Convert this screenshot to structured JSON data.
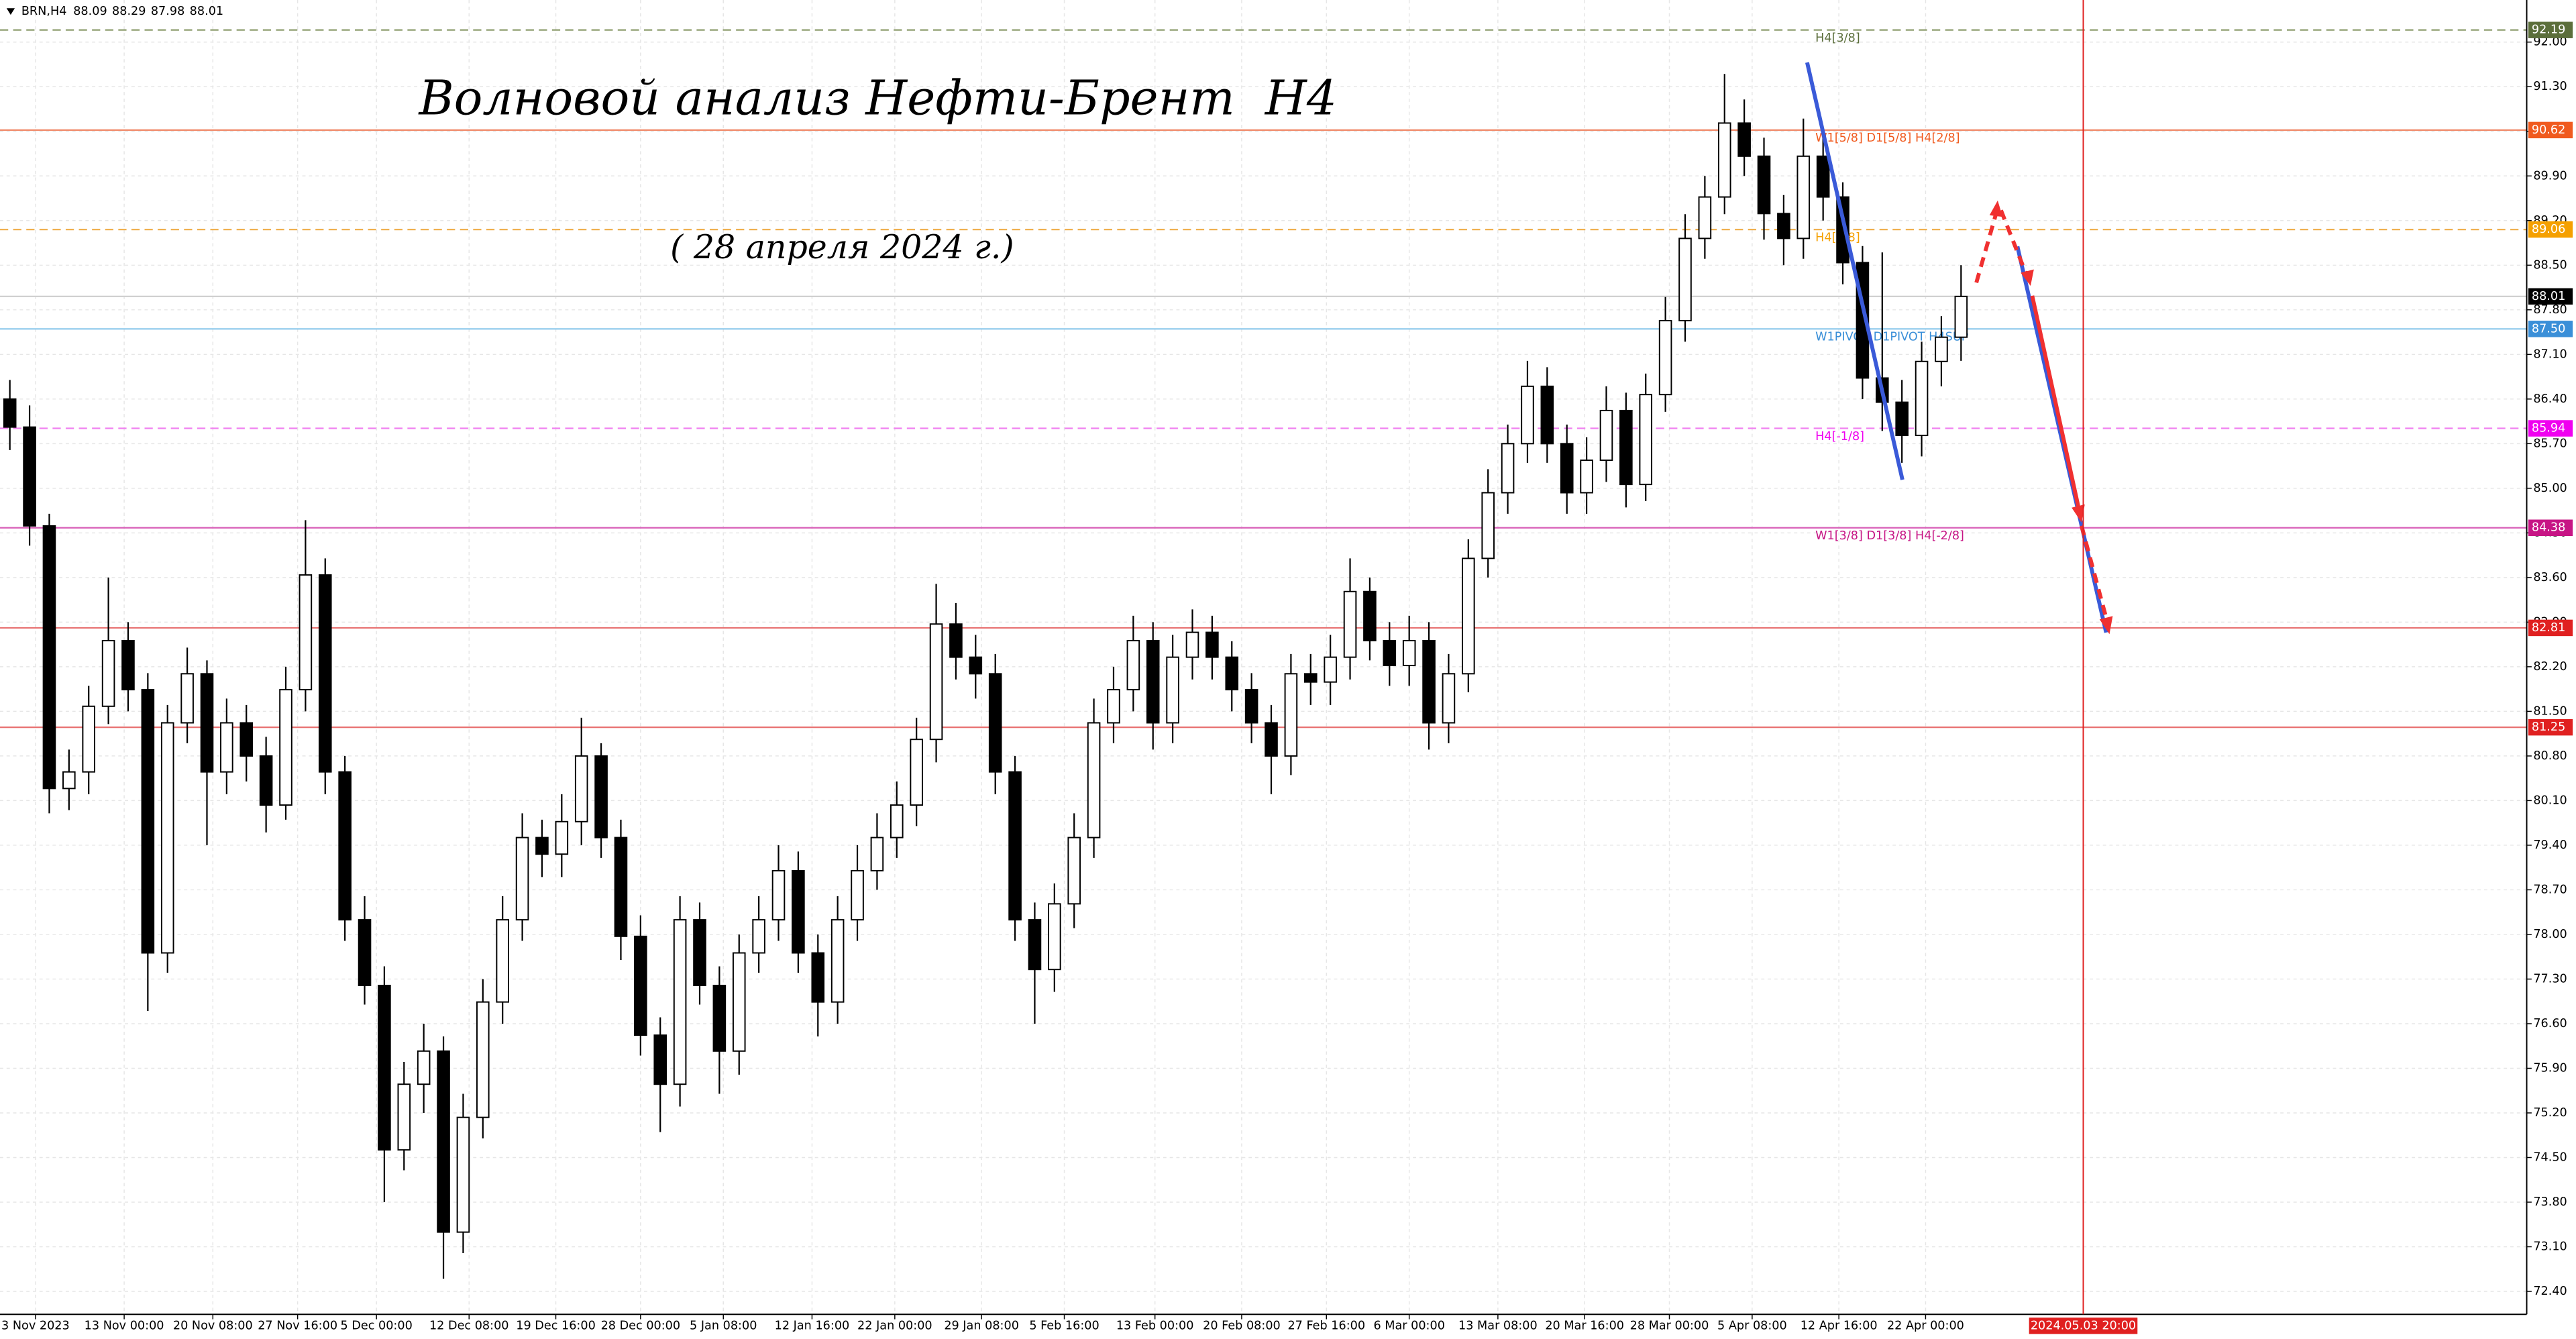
{
  "chart_data": {
    "type": "candlestick",
    "header": {
      "symbol": "BRN,H4",
      "open": 88.09,
      "high": 88.29,
      "low": 87.98,
      "close": 88.01
    },
    "title": "Волновой анализ Нефти-Брент  H4",
    "subtitle": "( 28 апреля 2024 г.)",
    "grid": true,
    "up_color": "#ffffff",
    "down_color": "#000000",
    "ylim": [
      72.04,
      92.66
    ],
    "yticks": [
      {
        "value": 72.4,
        "label": "72.40"
      },
      {
        "value": 73.1,
        "label": "73.10"
      },
      {
        "value": 73.8,
        "label": "73.80"
      },
      {
        "value": 74.5,
        "label": "74.50"
      },
      {
        "value": 75.2,
        "label": "75.20"
      },
      {
        "value": 75.9,
        "label": "75.90"
      },
      {
        "value": 76.6,
        "label": "76.60"
      },
      {
        "value": 77.3,
        "label": "77.30"
      },
      {
        "value": 78.0,
        "label": "78.00"
      },
      {
        "value": 78.7,
        "label": "78.70"
      },
      {
        "value": 79.4,
        "label": "79.40"
      },
      {
        "value": 80.1,
        "label": "80.10"
      },
      {
        "value": 80.8,
        "label": "80.80"
      },
      {
        "value": 81.5,
        "label": "81.50"
      },
      {
        "value": 82.2,
        "label": "82.20"
      },
      {
        "value": 82.9,
        "label": "82.90"
      },
      {
        "value": 83.6,
        "label": "83.60"
      },
      {
        "value": 84.3,
        "label": "84.30"
      },
      {
        "value": 85.0,
        "label": "85.00"
      },
      {
        "value": 85.7,
        "label": "85.70"
      },
      {
        "value": 86.4,
        "label": "86.40"
      },
      {
        "value": 87.1,
        "label": "87.10"
      },
      {
        "value": 87.8,
        "label": "87.80"
      },
      {
        "value": 88.5,
        "label": "88.50"
      },
      {
        "value": 89.2,
        "label": "89.20"
      },
      {
        "value": 89.9,
        "label": "89.90"
      },
      {
        "value": 90.6,
        "label": "90.60"
      },
      {
        "value": 91.3,
        "label": "91.30"
      },
      {
        "value": 92.0,
        "label": "92.00"
      }
    ],
    "xlim": [
      0,
      128.2
    ],
    "xticks": [
      {
        "value": 1.8,
        "label": "3 Nov 2023"
      },
      {
        "value": 6.3,
        "label": "13 Nov 00:00"
      },
      {
        "value": 10.8,
        "label": "20 Nov 08:00"
      },
      {
        "value": 15.1,
        "label": "27 Nov 16:00"
      },
      {
        "value": 19.1,
        "label": "5 Dec 00:00"
      },
      {
        "value": 23.8,
        "label": "12 Dec 08:00"
      },
      {
        "value": 28.2,
        "label": "19 Dec 16:00"
      },
      {
        "value": 32.5,
        "label": "28 Dec 00:00"
      },
      {
        "value": 36.7,
        "label": "5 Jan 08:00"
      },
      {
        "value": 41.2,
        "label": "12 Jan 16:00"
      },
      {
        "value": 45.4,
        "label": "22 Jan 00:00"
      },
      {
        "value": 49.8,
        "label": "29 Jan 08:00"
      },
      {
        "value": 54.0,
        "label": "5 Feb 16:00"
      },
      {
        "value": 58.6,
        "label": "13 Feb 00:00"
      },
      {
        "value": 63.0,
        "label": "20 Feb 08:00"
      },
      {
        "value": 67.3,
        "label": "27 Feb 16:00"
      },
      {
        "value": 71.5,
        "label": "6 Mar 00:00"
      },
      {
        "value": 76.0,
        "label": "13 Mar 08:00"
      },
      {
        "value": 80.4,
        "label": "20 Mar 16:00"
      },
      {
        "value": 84.7,
        "label": "28 Mar 00:00"
      },
      {
        "value": 88.9,
        "label": "5 Apr 08:00"
      },
      {
        "value": 93.3,
        "label": "12 Apr 16:00"
      },
      {
        "value": 97.7,
        "label": "22 Apr 00:00"
      }
    ],
    "vline": {
      "value": 105.7,
      "label": "2024.05.03 20:00",
      "color": "#e02020"
    },
    "levels": [
      {
        "value": 92.19,
        "text": "H4[3/8]",
        "color": "#8a9a6a",
        "label_color": "#5b6e3b",
        "style": "dashed"
      },
      {
        "value": 90.62,
        "text": "W1[5/8] D1[5/8] H4[2/8]",
        "color": "#f08a6a",
        "label_color": "#f05a1e",
        "style": "solid"
      },
      {
        "value": 89.06,
        "text": "H4[1/8]",
        "color": "#f0b050",
        "label_color": "#f5a000",
        "style": "dashed"
      },
      {
        "value": 88.01,
        "color": "#d0d0d0",
        "label_color": "#000000",
        "style": "solid"
      },
      {
        "value": 87.5,
        "label": "87.50",
        "text": "W1PIVOT D1PIVOT H4SUP",
        "color": "#8cc8ec",
        "label_color": "#3a8fd8",
        "style": "solid"
      },
      {
        "value": 85.94,
        "text": "H4[-1/8]",
        "color": "#f080f0",
        "label_color": "#f000f0",
        "style": "dashed"
      },
      {
        "value": 84.38,
        "text": "W1[3/8] D1[3/8] H4[-2/8]",
        "color": "#d860b8",
        "label_color": "#c71585",
        "style": "solid"
      },
      {
        "value": 82.81,
        "color": "#e87070",
        "label_color": "#e02020",
        "style": "solid"
      },
      {
        "value": 81.25,
        "color": "#e87070",
        "label_color": "#e02020",
        "style": "solid"
      }
    ],
    "ohlc": [
      [
        86.4,
        86.7,
        85.6,
        85.96
      ],
      [
        85.96,
        86.3,
        84.1,
        84.41
      ],
      [
        84.41,
        84.6,
        79.9,
        80.29
      ],
      [
        80.29,
        80.9,
        79.95,
        80.55
      ],
      [
        80.55,
        81.9,
        80.2,
        81.58
      ],
      [
        81.58,
        83.6,
        81.3,
        82.61
      ],
      [
        82.61,
        82.9,
        81.5,
        81.84
      ],
      [
        81.84,
        82.1,
        76.8,
        77.71
      ],
      [
        77.71,
        81.6,
        77.4,
        81.32
      ],
      [
        81.32,
        82.5,
        81.0,
        82.09
      ],
      [
        82.09,
        82.3,
        79.4,
        80.55
      ],
      [
        80.55,
        81.7,
        80.2,
        81.32
      ],
      [
        81.32,
        81.6,
        80.4,
        80.8
      ],
      [
        80.8,
        81.1,
        79.6,
        80.03
      ],
      [
        80.03,
        82.2,
        79.8,
        81.84
      ],
      [
        81.84,
        84.5,
        81.5,
        83.64
      ],
      [
        83.64,
        83.9,
        80.2,
        80.55
      ],
      [
        80.55,
        80.8,
        77.9,
        78.23
      ],
      [
        78.23,
        78.6,
        76.9,
        77.2
      ],
      [
        77.2,
        77.5,
        73.8,
        74.62
      ],
      [
        74.62,
        76.0,
        74.3,
        75.65
      ],
      [
        75.65,
        76.6,
        75.2,
        76.17
      ],
      [
        76.17,
        76.4,
        72.6,
        73.33
      ],
      [
        73.33,
        75.5,
        73.0,
        75.13
      ],
      [
        75.13,
        77.3,
        74.8,
        76.94
      ],
      [
        76.94,
        78.6,
        76.6,
        78.23
      ],
      [
        78.23,
        79.9,
        77.9,
        79.52
      ],
      [
        79.52,
        79.8,
        78.9,
        79.26
      ],
      [
        79.26,
        80.2,
        78.9,
        79.77
      ],
      [
        79.77,
        81.4,
        79.4,
        80.8
      ],
      [
        80.8,
        81.0,
        79.2,
        79.52
      ],
      [
        79.52,
        79.8,
        77.6,
        77.97
      ],
      [
        77.97,
        78.3,
        76.1,
        76.42
      ],
      [
        76.42,
        76.7,
        74.9,
        75.65
      ],
      [
        75.65,
        78.6,
        75.3,
        78.23
      ],
      [
        78.23,
        78.5,
        76.9,
        77.2
      ],
      [
        77.2,
        77.5,
        75.5,
        76.17
      ],
      [
        76.17,
        78.0,
        75.8,
        77.71
      ],
      [
        77.71,
        78.6,
        77.4,
        78.23
      ],
      [
        78.23,
        79.4,
        77.9,
        79.0
      ],
      [
        79.0,
        79.3,
        77.4,
        77.71
      ],
      [
        77.71,
        78.0,
        76.4,
        76.94
      ],
      [
        76.94,
        78.6,
        76.6,
        78.23
      ],
      [
        78.23,
        79.4,
        77.9,
        79.0
      ],
      [
        79.0,
        79.9,
        78.7,
        79.52
      ],
      [
        79.52,
        80.4,
        79.2,
        80.03
      ],
      [
        80.03,
        81.4,
        79.7,
        81.06
      ],
      [
        81.06,
        83.5,
        80.7,
        82.87
      ],
      [
        82.87,
        83.2,
        82.0,
        82.35
      ],
      [
        82.35,
        82.7,
        81.7,
        82.09
      ],
      [
        82.09,
        82.4,
        80.2,
        80.55
      ],
      [
        80.55,
        80.8,
        77.9,
        78.23
      ],
      [
        78.23,
        78.5,
        76.6,
        77.45
      ],
      [
        77.45,
        78.8,
        77.1,
        78.48
      ],
      [
        78.48,
        79.9,
        78.1,
        79.52
      ],
      [
        79.52,
        81.7,
        79.2,
        81.32
      ],
      [
        81.32,
        82.2,
        81.0,
        81.84
      ],
      [
        81.84,
        83.0,
        81.5,
        82.61
      ],
      [
        82.61,
        82.9,
        80.9,
        81.32
      ],
      [
        81.32,
        82.7,
        81.0,
        82.35
      ],
      [
        82.35,
        83.1,
        82.0,
        82.74
      ],
      [
        82.74,
        83.0,
        82.0,
        82.35
      ],
      [
        82.35,
        82.6,
        81.5,
        81.84
      ],
      [
        81.84,
        82.1,
        81.0,
        81.32
      ],
      [
        81.32,
        81.6,
        80.2,
        80.8
      ],
      [
        80.8,
        82.4,
        80.5,
        82.09
      ],
      [
        82.09,
        82.4,
        81.6,
        81.96
      ],
      [
        81.96,
        82.7,
        81.6,
        82.35
      ],
      [
        82.35,
        83.9,
        82.0,
        83.38
      ],
      [
        83.38,
        83.6,
        82.3,
        82.61
      ],
      [
        82.61,
        82.9,
        81.9,
        82.22
      ],
      [
        82.22,
        83.0,
        81.9,
        82.61
      ],
      [
        82.61,
        82.9,
        80.9,
        81.32
      ],
      [
        81.32,
        82.4,
        81.0,
        82.09
      ],
      [
        82.09,
        84.2,
        81.8,
        83.9
      ],
      [
        83.9,
        85.3,
        83.6,
        84.93
      ],
      [
        84.93,
        86.0,
        84.6,
        85.7
      ],
      [
        85.7,
        87.0,
        85.4,
        86.6
      ],
      [
        86.6,
        86.9,
        85.4,
        85.7
      ],
      [
        85.7,
        86.0,
        84.6,
        84.93
      ],
      [
        84.93,
        85.8,
        84.6,
        85.44
      ],
      [
        85.44,
        86.6,
        85.1,
        86.22
      ],
      [
        86.22,
        86.5,
        84.7,
        85.06
      ],
      [
        85.06,
        86.8,
        84.8,
        86.47
      ],
      [
        86.47,
        88.0,
        86.2,
        87.63
      ],
      [
        87.63,
        89.3,
        87.3,
        88.92
      ],
      [
        88.92,
        89.9,
        88.6,
        89.57
      ],
      [
        89.57,
        91.5,
        89.3,
        90.73
      ],
      [
        90.73,
        91.1,
        89.9,
        90.21
      ],
      [
        90.21,
        90.5,
        88.9,
        89.31
      ],
      [
        89.31,
        89.6,
        88.5,
        88.92
      ],
      [
        88.92,
        90.8,
        88.6,
        90.21
      ],
      [
        90.21,
        90.5,
        89.2,
        89.57
      ],
      [
        89.57,
        89.8,
        88.2,
        88.54
      ],
      [
        88.54,
        88.8,
        86.4,
        86.73
      ],
      [
        86.73,
        88.7,
        85.9,
        86.35
      ],
      [
        86.35,
        86.7,
        85.4,
        85.83
      ],
      [
        85.83,
        87.3,
        85.5,
        86.99
      ],
      [
        86.99,
        87.7,
        86.6,
        87.37
      ],
      [
        87.37,
        88.5,
        87.0,
        88.01
      ]
    ]
  }
}
